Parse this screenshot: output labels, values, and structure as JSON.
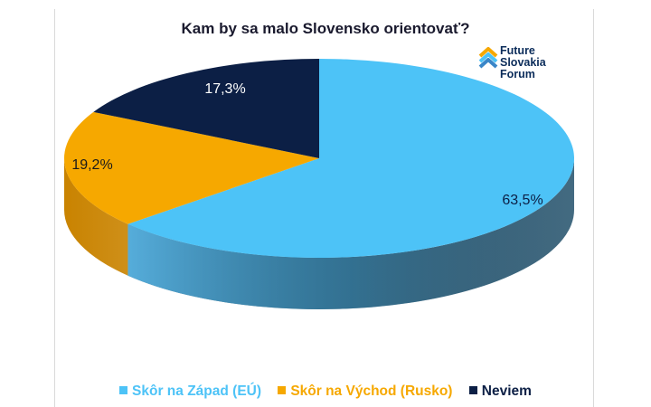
{
  "logo": {
    "lines": [
      "Future",
      "Slovakia",
      "Forum"
    ]
  },
  "chart_data": {
    "type": "pie",
    "title": "Kam by sa malo Slovensko  orientovať?",
    "slices": [
      {
        "label": "Skôr na Západ (EÚ)",
        "value": 63.5,
        "display": "63,5%",
        "color": "#4dc3f7",
        "side_color": "#2e5a73",
        "legend_color": "#4dc3f7"
      },
      {
        "label": "Skôr na Východ (Rusko)",
        "value": 19.2,
        "display": "19,2%",
        "color": "#f6a800",
        "side_color": "#c98300",
        "legend_color": "#f6a800"
      },
      {
        "label": "Neviem",
        "value": 17.3,
        "display": "17,3%",
        "color": "#0c1f45",
        "side_color": "#081530",
        "legend_color": "#0c1f45"
      }
    ],
    "legend_position": "bottom"
  }
}
